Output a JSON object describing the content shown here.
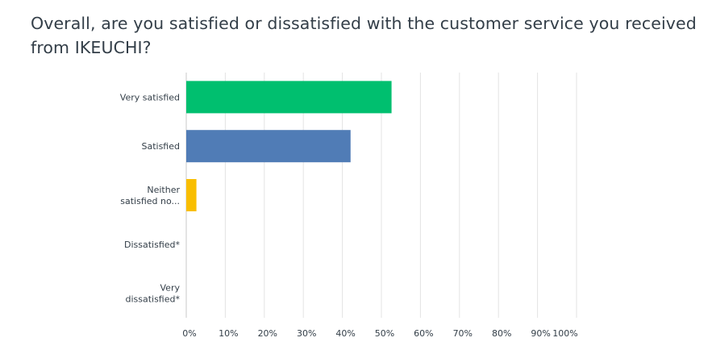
{
  "question": {
    "title": "Overall, are you satisfied or dissatisfied with the customer service you received from IKEUCHI?"
  },
  "chart_data": {
    "type": "bar",
    "orientation": "horizontal",
    "title": "Overall, are you satisfied or dissatisfied with the customer service you received from IKEUCHI?",
    "categories": [
      [
        "Very satisfied"
      ],
      [
        "Satisfied"
      ],
      [
        "Neither",
        "satisfied no..."
      ],
      [
        "Dissatisfied*"
      ],
      [
        "Very",
        "dissatisfied*"
      ]
    ],
    "values": [
      52.6,
      42.1,
      2.6,
      0,
      0
    ],
    "colors": [
      "#00bf6f",
      "#507cb6",
      "#f9be00",
      "#6bc8cd",
      "#f05b24"
    ],
    "xlim": [
      0,
      100
    ],
    "xticks": [
      "0%",
      "10%",
      "20%",
      "30%",
      "40%",
      "50%",
      "60%",
      "70%",
      "80%",
      "90%",
      "100%"
    ],
    "grid": true,
    "legend": "none"
  }
}
